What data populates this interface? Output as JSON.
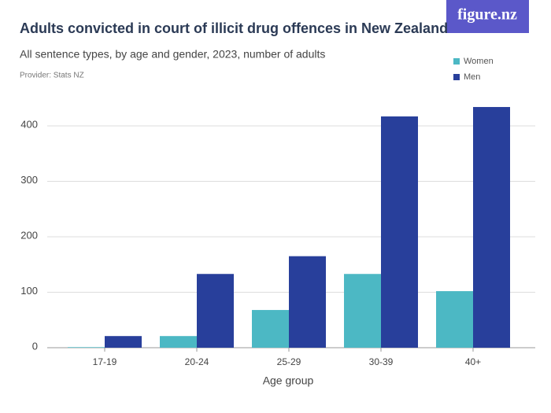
{
  "chart_data": {
    "type": "bar",
    "title": "Adults convicted in court of illicit drug offences in New Zealand",
    "subtitle": "All sentence types, by age and gender, 2023, number of adults",
    "provider": "Provider: Stats NZ",
    "logo": "figure.nz",
    "x_label": "Age group",
    "categories": [
      "17-19",
      "20-24",
      "25-29",
      "30-39",
      "40+"
    ],
    "series": [
      {
        "name": "Women",
        "color": "#4cb8c4",
        "values": [
          1,
          21,
          68,
          133,
          102
        ]
      },
      {
        "name": "Men",
        "color": "#283f9b",
        "values": [
          21,
          133,
          165,
          417,
          434
        ]
      }
    ],
    "ylim": [
      0,
      440
    ],
    "yticks": [
      0,
      100,
      200,
      300,
      400
    ],
    "grid": true
  }
}
